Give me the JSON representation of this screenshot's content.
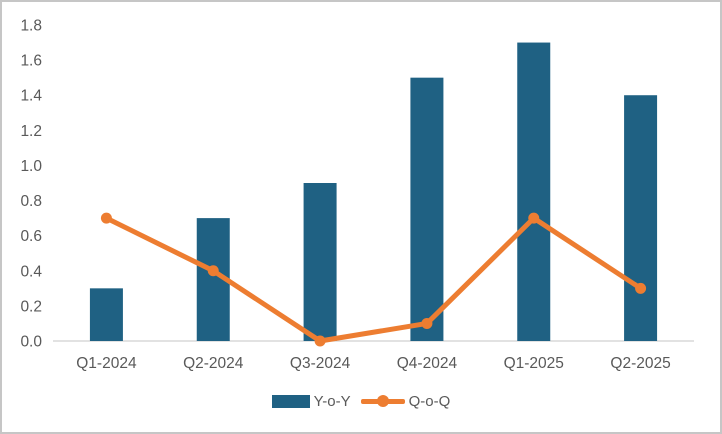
{
  "chart_data": {
    "type": "bar",
    "title": "",
    "xlabel": "",
    "ylabel": "",
    "categories": [
      "Q1-2024",
      "Q2-2024",
      "Q3-2024",
      "Q4-2024",
      "Q1-2025",
      "Q2-2025"
    ],
    "series": [
      {
        "name": "Y-o-Y",
        "type": "bar",
        "color": "#1f6183",
        "values": [
          0.3,
          0.7,
          0.9,
          1.5,
          1.7,
          1.4
        ]
      },
      {
        "name": "Q-o-Q",
        "type": "line",
        "color": "#ed7d31",
        "values": [
          0.7,
          0.4,
          0.0,
          0.1,
          0.7,
          0.3
        ]
      }
    ],
    "ylim": [
      0.0,
      1.8
    ],
    "ytick_step": 0.2,
    "ytick_decimals": 1,
    "grid": false,
    "legend_position": "bottom",
    "colors": {
      "axis_line": "#d9d9d9",
      "tick_label": "#595959",
      "category_label": "#595959",
      "frame_border": "#c6c6c6",
      "background": "#ffffff"
    }
  }
}
